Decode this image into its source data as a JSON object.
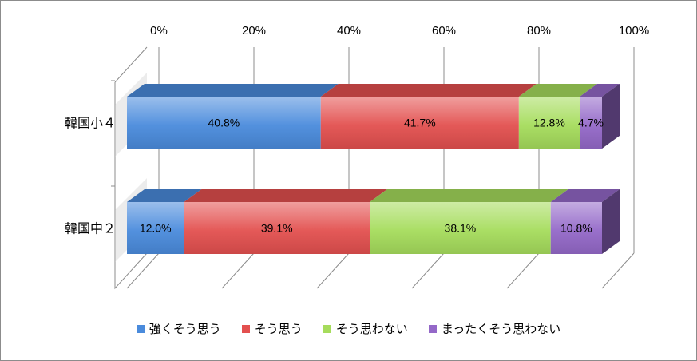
{
  "chart_data": {
    "type": "bar",
    "orientation": "horizontal",
    "stacked": "percent",
    "style": "3d",
    "categories": [
      "韓国小４",
      "韓国中２"
    ],
    "x_ticks": [
      "0%",
      "20%",
      "40%",
      "60%",
      "80%",
      "100%"
    ],
    "xlim": [
      0,
      100
    ],
    "grid": true,
    "legend_position": "bottom",
    "series": [
      {
        "name": "強くそう思う",
        "values": [
          40.8,
          12.0
        ],
        "labels": [
          "40.8%",
          "12.0%"
        ],
        "color": "#4a8bdc"
      },
      {
        "name": "そう思う",
        "values": [
          41.7,
          39.1
        ],
        "labels": [
          "41.7%",
          "39.1%"
        ],
        "color": "#e3504f"
      },
      {
        "name": "そう思わない",
        "values": [
          12.8,
          38.1
        ],
        "labels": [
          "12.8%",
          "38.1%"
        ],
        "color": "#a6dc5c"
      },
      {
        "name": "まったくそう思わない",
        "values": [
          4.7,
          10.8
        ],
        "labels": [
          "4.7%",
          "10.8%"
        ],
        "color": "#9468c8"
      }
    ]
  }
}
